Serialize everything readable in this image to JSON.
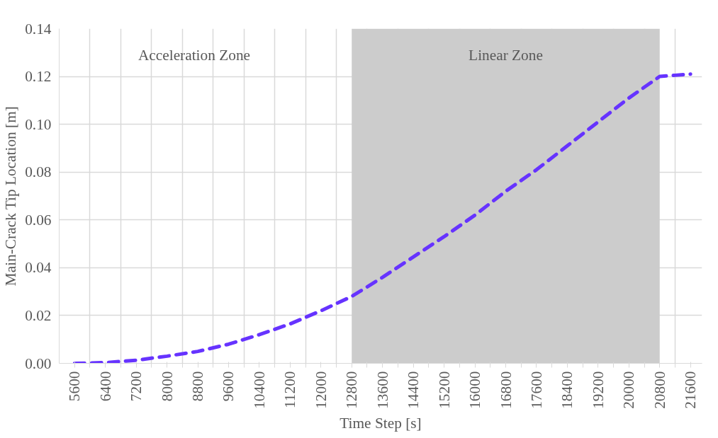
{
  "chart_data": {
    "type": "line",
    "xlabel": "Time Step [s]",
    "ylabel": "Main-Crack Tip Location [m]",
    "x": [
      5600,
      6400,
      7200,
      8000,
      8800,
      9600,
      10400,
      11200,
      12000,
      12800,
      13600,
      14400,
      15200,
      16000,
      16800,
      17600,
      18400,
      19200,
      20000,
      20800,
      21200,
      21600
    ],
    "series": [
      {
        "color": "#6633ff",
        "values": [
          0.0,
          0.0003,
          0.0013,
          0.003,
          0.005,
          0.008,
          0.012,
          0.0165,
          0.022,
          0.028,
          0.036,
          0.0445,
          0.053,
          0.062,
          0.072,
          0.081,
          0.091,
          0.101,
          0.111,
          0.12,
          0.1205,
          0.121
        ]
      }
    ],
    "line_style": "dashed",
    "marker": "none",
    "grid": true,
    "xlim": [
      5200,
      21900
    ],
    "ylim": [
      0,
      0.14
    ],
    "xticks": [
      5600,
      {
        "value": 6000,
        "label": null
      },
      6400,
      {
        "value": 6800,
        "label": null
      },
      7200,
      {
        "value": 7600,
        "label": null
      },
      8000,
      {
        "value": 8400,
        "label": null
      },
      8800,
      {
        "value": 9200,
        "label": null
      },
      9600,
      {
        "value": 10000,
        "label": null
      },
      10400,
      {
        "value": 10800,
        "label": null
      },
      11200,
      {
        "value": 11600,
        "label": null
      },
      12000,
      {
        "value": 12400,
        "label": null
      },
      12800,
      {
        "value": 13200,
        "label": null
      },
      13600,
      {
        "value": 14000,
        "label": null
      },
      14400,
      {
        "value": 14800,
        "label": null
      },
      15200,
      {
        "value": 15600,
        "label": null
      },
      16000,
      {
        "value": 16400,
        "label": null
      },
      16800,
      {
        "value": 17200,
        "label": null
      },
      17600,
      {
        "value": 18000,
        "label": null
      },
      18400,
      {
        "value": 18800,
        "label": null
      },
      19200,
      {
        "value": 19600,
        "label": null
      },
      20000,
      {
        "value": 20400,
        "label": null
      },
      20800,
      {
        "value": 21200,
        "label": null
      },
      21600
    ],
    "yticks": [
      {
        "value": 0,
        "label": "0.00"
      },
      {
        "value": 0.02,
        "label": "0.02"
      },
      {
        "value": 0.04,
        "label": "0.04"
      },
      {
        "value": 0.06,
        "label": "0.06"
      },
      {
        "value": 0.08,
        "label": "0.08"
      },
      {
        "value": 0.1,
        "label": "0.10"
      },
      {
        "value": 0.12,
        "label": "0.12"
      },
      {
        "value": 0.14,
        "label": "0.14"
      }
    ],
    "bands": [
      {
        "axis": "x",
        "from": 12800,
        "to": 20800,
        "label": "Linear Zone",
        "color": "#cccccc"
      }
    ],
    "annotations": [
      "Acceleration Zone"
    ]
  }
}
